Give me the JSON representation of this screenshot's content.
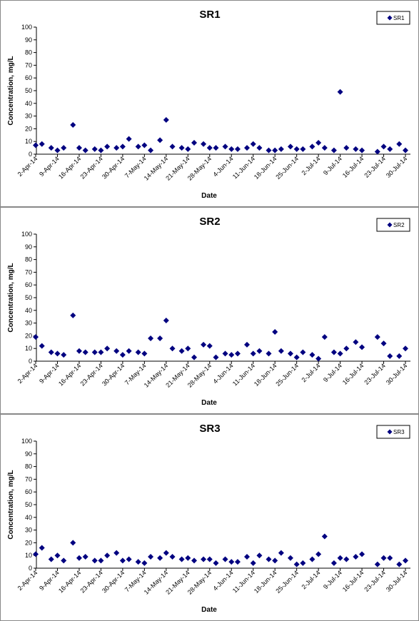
{
  "chart_data": [
    {
      "type": "scatter",
      "title": "SR1",
      "xlabel": "Date",
      "ylabel": "Concentration, mg/L",
      "ylim": [
        0,
        100
      ],
      "y_ticks": [
        "0",
        "10",
        "20",
        "30",
        "40",
        "50",
        "60",
        "70",
        "80",
        "90",
        "100"
      ],
      "x_ticks": [
        "2-Apr-14",
        "9-Apr-14",
        "16-Apr-14",
        "23-Apr-14",
        "30-Apr-14",
        "7-May-14",
        "14-May-14",
        "21-May-14",
        "28-May-14",
        "4-Jun-14",
        "11-Jun-14",
        "18-Jun-14",
        "25-Jun-14",
        "2-Jul-14",
        "9-Jul-14",
        "16-Jul-14",
        "23-Jul-14",
        "30-Jul-14"
      ],
      "legend": "top-right",
      "series": [
        {
          "name": "SR1",
          "color": "#000080",
          "x": [
            "2014-04-02",
            "2014-04-04",
            "2014-04-07",
            "2014-04-09",
            "2014-04-11",
            "2014-04-14",
            "2014-04-16",
            "2014-04-18",
            "2014-04-21",
            "2014-04-23",
            "2014-04-25",
            "2014-04-28",
            "2014-04-30",
            "2014-05-02",
            "2014-05-05",
            "2014-05-07",
            "2014-05-09",
            "2014-05-12",
            "2014-05-14",
            "2014-05-16",
            "2014-05-19",
            "2014-05-21",
            "2014-05-23",
            "2014-05-26",
            "2014-05-28",
            "2014-05-30",
            "2014-06-02",
            "2014-06-04",
            "2014-06-06",
            "2014-06-09",
            "2014-06-11",
            "2014-06-13",
            "2014-06-16",
            "2014-06-18",
            "2014-06-20",
            "2014-06-23",
            "2014-06-25",
            "2014-06-27",
            "2014-06-30",
            "2014-07-02",
            "2014-07-04",
            "2014-07-07",
            "2014-07-09",
            "2014-07-11",
            "2014-07-14",
            "2014-07-16",
            "2014-07-21",
            "2014-07-23",
            "2014-07-25",
            "2014-07-28",
            "2014-07-30"
          ],
          "y": [
            7,
            8,
            5,
            3,
            5,
            23,
            5,
            3,
            4,
            3,
            6,
            5,
            6,
            12,
            6,
            7,
            3,
            11,
            27,
            6,
            5,
            4,
            9,
            8,
            5,
            5,
            6,
            4,
            4,
            5,
            8,
            5,
            3,
            3,
            4,
            6,
            4,
            4,
            6,
            9,
            5,
            3,
            49,
            5,
            4,
            3,
            2,
            6,
            4,
            8,
            3
          ]
        }
      ]
    },
    {
      "type": "scatter",
      "title": "SR2",
      "xlabel": "Date",
      "ylabel": "Concentration, mg/L",
      "ylim": [
        0,
        100
      ],
      "y_ticks": [
        "0",
        "10",
        "20",
        "30",
        "40",
        "50",
        "60",
        "70",
        "80",
        "90",
        "100"
      ],
      "x_ticks": [
        "2-Apr-14",
        "9-Apr-14",
        "16-Apr-14",
        "23-Apr-14",
        "30-Apr-14",
        "7-May-14",
        "14-May-14",
        "21-May-14",
        "28-May-14",
        "4-Jun-14",
        "11-Jun-14",
        "18-Jun-14",
        "25-Jun-14",
        "2-Jul-14",
        "9-Jul-14",
        "16-Jul-14",
        "23-Jul-14",
        "30-Jul-14"
      ],
      "legend": "top-right",
      "series": [
        {
          "name": "SR2",
          "color": "#000080",
          "x": [
            "2014-04-02",
            "2014-04-04",
            "2014-04-07",
            "2014-04-09",
            "2014-04-11",
            "2014-04-14",
            "2014-04-16",
            "2014-04-18",
            "2014-04-21",
            "2014-04-23",
            "2014-04-25",
            "2014-04-28",
            "2014-04-30",
            "2014-05-02",
            "2014-05-05",
            "2014-05-07",
            "2014-05-09",
            "2014-05-12",
            "2014-05-14",
            "2014-05-16",
            "2014-05-19",
            "2014-05-21",
            "2014-05-23",
            "2014-05-26",
            "2014-05-28",
            "2014-05-30",
            "2014-06-02",
            "2014-06-04",
            "2014-06-06",
            "2014-06-09",
            "2014-06-11",
            "2014-06-13",
            "2014-06-16",
            "2014-06-18",
            "2014-06-20",
            "2014-06-23",
            "2014-06-25",
            "2014-06-27",
            "2014-06-30",
            "2014-07-02",
            "2014-07-04",
            "2014-07-07",
            "2014-07-09",
            "2014-07-11",
            "2014-07-14",
            "2014-07-16",
            "2014-07-21",
            "2014-07-23",
            "2014-07-25",
            "2014-07-28",
            "2014-07-30"
          ],
          "y": [
            19,
            12,
            7,
            6,
            5,
            36,
            8,
            7,
            7,
            7,
            10,
            8,
            5,
            8,
            7,
            6,
            18,
            18,
            32,
            10,
            8,
            10,
            3,
            13,
            12,
            3,
            6,
            5,
            6,
            13,
            6,
            8,
            6,
            23,
            8,
            6,
            3,
            7,
            5,
            2,
            19,
            7,
            6,
            10,
            15,
            11,
            19,
            14,
            4,
            4,
            10
          ]
        }
      ]
    },
    {
      "type": "scatter",
      "title": "SR3",
      "xlabel": "Date",
      "ylabel": "Concentration, mg/L",
      "ylim": [
        0,
        100
      ],
      "y_ticks": [
        "0",
        "10",
        "20",
        "30",
        "40",
        "50",
        "60",
        "70",
        "80",
        "90",
        "100"
      ],
      "x_ticks": [
        "2-Apr-14",
        "9-Apr-14",
        "16-Apr-14",
        "23-Apr-14",
        "30-Apr-14",
        "7-May-14",
        "14-May-14",
        "21-May-14",
        "28-May-14",
        "4-Jun-14",
        "11-Jun-14",
        "18-Jun-14",
        "25-Jun-14",
        "2-Jul-14",
        "9-Jul-14",
        "16-Jul-14",
        "23-Jul-14",
        "30-Jul-14"
      ],
      "legend": "top-right",
      "series": [
        {
          "name": "SR3",
          "color": "#000080",
          "x": [
            "2014-04-02",
            "2014-04-04",
            "2014-04-07",
            "2014-04-09",
            "2014-04-11",
            "2014-04-14",
            "2014-04-16",
            "2014-04-18",
            "2014-04-21",
            "2014-04-23",
            "2014-04-25",
            "2014-04-28",
            "2014-04-30",
            "2014-05-02",
            "2014-05-05",
            "2014-05-07",
            "2014-05-09",
            "2014-05-12",
            "2014-05-14",
            "2014-05-16",
            "2014-05-19",
            "2014-05-21",
            "2014-05-23",
            "2014-05-26",
            "2014-05-28",
            "2014-05-30",
            "2014-06-02",
            "2014-06-04",
            "2014-06-06",
            "2014-06-09",
            "2014-06-11",
            "2014-06-13",
            "2014-06-16",
            "2014-06-18",
            "2014-06-20",
            "2014-06-23",
            "2014-06-25",
            "2014-06-27",
            "2014-06-30",
            "2014-07-02",
            "2014-07-04",
            "2014-07-07",
            "2014-07-09",
            "2014-07-11",
            "2014-07-14",
            "2014-07-16",
            "2014-07-21",
            "2014-07-23",
            "2014-07-25",
            "2014-07-28",
            "2014-07-30"
          ],
          "y": [
            11,
            16,
            7,
            10,
            6,
            20,
            8,
            9,
            6,
            6,
            10,
            12,
            6,
            7,
            5,
            4,
            9,
            8,
            12,
            9,
            7,
            8,
            6,
            7,
            7,
            4,
            7,
            5,
            5,
            9,
            4,
            10,
            7,
            6,
            12,
            8,
            3,
            4,
            7,
            11,
            25,
            4,
            8,
            7,
            9,
            11,
            3,
            8,
            8,
            3,
            6
          ]
        }
      ]
    }
  ]
}
